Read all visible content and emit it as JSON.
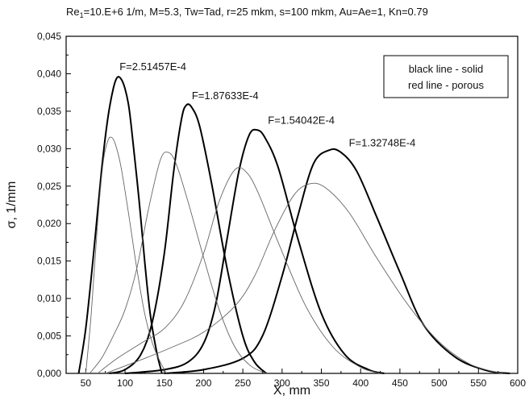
{
  "chart_data": {
    "type": "line",
    "title_prefix": "Re",
    "title_subscript": "1",
    "title_rest": "=10.E+6 1/m, M=5.3, Tw=Tad, r=25 mkm, s=100 mkm, Au=Ae=1, Kn=0.79",
    "xlabel": "X, mm",
    "ylabel": "σ, 1/mm",
    "xlim": [
      25,
      600
    ],
    "ylim": [
      0,
      0.045
    ],
    "x_ticks": [
      50,
      100,
      150,
      200,
      250,
      300,
      350,
      400,
      450,
      500,
      550,
      600
    ],
    "x_tick_labels": [
      "50",
      "100",
      "150",
      "200",
      "250",
      "300",
      "350",
      "400",
      "450",
      "500",
      "550",
      "600"
    ],
    "y_ticks": [
      0,
      0.005,
      0.01,
      0.015,
      0.02,
      0.025,
      0.03,
      0.035,
      0.04,
      0.045
    ],
    "y_tick_labels": [
      "0,000",
      "0,005",
      "0,010",
      "0,015",
      "0,020",
      "0,025",
      "0,030",
      "0,035",
      "0,040",
      "0,045"
    ],
    "grid": false,
    "legend": {
      "placement": "top-right",
      "lines": [
        "black line - solid",
        "red line - porous"
      ]
    },
    "annotations": [
      {
        "text": "F=2.51457E-4",
        "x": 93,
        "y": 0.0405
      },
      {
        "text": "F=1.87633E-4",
        "x": 185,
        "y": 0.0366
      },
      {
        "text": "F=1.54042E-4",
        "x": 282,
        "y": 0.0333
      },
      {
        "text": "F=1.32748E-4",
        "x": 385,
        "y": 0.0303
      }
    ],
    "series": [
      {
        "style": "solid",
        "color": "#000000",
        "x": [
          41,
          50,
          60,
          70,
          78,
          85,
          90,
          95,
          100,
          105,
          110,
          118,
          125,
          132,
          140,
          147
        ],
        "y": [
          0,
          0.006,
          0.016,
          0.027,
          0.034,
          0.038,
          0.0395,
          0.0393,
          0.038,
          0.0355,
          0.031,
          0.023,
          0.015,
          0.008,
          0.003,
          0
        ]
      },
      {
        "style": "solid",
        "color": "#000000",
        "x": [
          80,
          100,
          120,
          135,
          150,
          162,
          172,
          178,
          185,
          195,
          210,
          230,
          250,
          265,
          280
        ],
        "y": [
          0,
          0.0005,
          0.0025,
          0.007,
          0.016,
          0.027,
          0.034,
          0.0358,
          0.0355,
          0.033,
          0.0255,
          0.014,
          0.005,
          0.0015,
          0
        ]
      },
      {
        "style": "solid",
        "color": "#000000",
        "x": [
          100,
          150,
          180,
          200,
          215,
          230,
          245,
          258,
          268,
          278,
          295,
          320,
          350,
          380,
          410,
          430
        ],
        "y": [
          0,
          0.0005,
          0.0015,
          0.004,
          0.009,
          0.018,
          0.027,
          0.0318,
          0.0325,
          0.0315,
          0.0275,
          0.018,
          0.008,
          0.0025,
          0.0005,
          0
        ]
      },
      {
        "style": "solid",
        "color": "#000000",
        "x": [
          150,
          200,
          250,
          275,
          300,
          320,
          340,
          360,
          375,
          395,
          420,
          450,
          480,
          520,
          560,
          590
        ],
        "y": [
          0,
          0.0005,
          0.002,
          0.005,
          0.013,
          0.021,
          0.028,
          0.0298,
          0.0295,
          0.027,
          0.021,
          0.0135,
          0.0065,
          0.0022,
          0.0004,
          0
        ]
      },
      {
        "style": "thin",
        "color": "#666666",
        "x": [
          50,
          57,
          65,
          72,
          78,
          83,
          88,
          95,
          105,
          115,
          125,
          135,
          145,
          153
        ],
        "y": [
          0,
          0.008,
          0.02,
          0.028,
          0.031,
          0.0315,
          0.0305,
          0.0275,
          0.021,
          0.014,
          0.008,
          0.004,
          0.0015,
          0
        ]
      },
      {
        "style": "thin",
        "color": "#666666",
        "x": [
          55,
          70,
          85,
          100,
          115,
          130,
          145,
          155,
          165,
          180,
          200,
          220,
          240,
          260,
          280
        ],
        "y": [
          0,
          0.002,
          0.005,
          0.0085,
          0.014,
          0.022,
          0.0285,
          0.0295,
          0.028,
          0.023,
          0.0155,
          0.0085,
          0.0035,
          0.001,
          0
        ]
      },
      {
        "style": "thin",
        "color": "#666666",
        "x": [
          65,
          90,
          120,
          150,
          175,
          200,
          220,
          240,
          255,
          270,
          295,
          330,
          365,
          400,
          425
        ],
        "y": [
          0,
          0.002,
          0.004,
          0.006,
          0.0095,
          0.016,
          0.023,
          0.0272,
          0.0268,
          0.024,
          0.0175,
          0.009,
          0.0035,
          0.0008,
          0
        ]
      },
      {
        "style": "thin",
        "color": "#666666",
        "x": [
          75,
          120,
          160,
          200,
          240,
          265,
          290,
          315,
          335,
          355,
          385,
          420,
          460,
          500,
          540,
          580
        ],
        "y": [
          0,
          0.0018,
          0.0035,
          0.0055,
          0.009,
          0.013,
          0.019,
          0.0238,
          0.0253,
          0.0248,
          0.0215,
          0.0155,
          0.0092,
          0.0042,
          0.0012,
          0
        ]
      }
    ]
  }
}
